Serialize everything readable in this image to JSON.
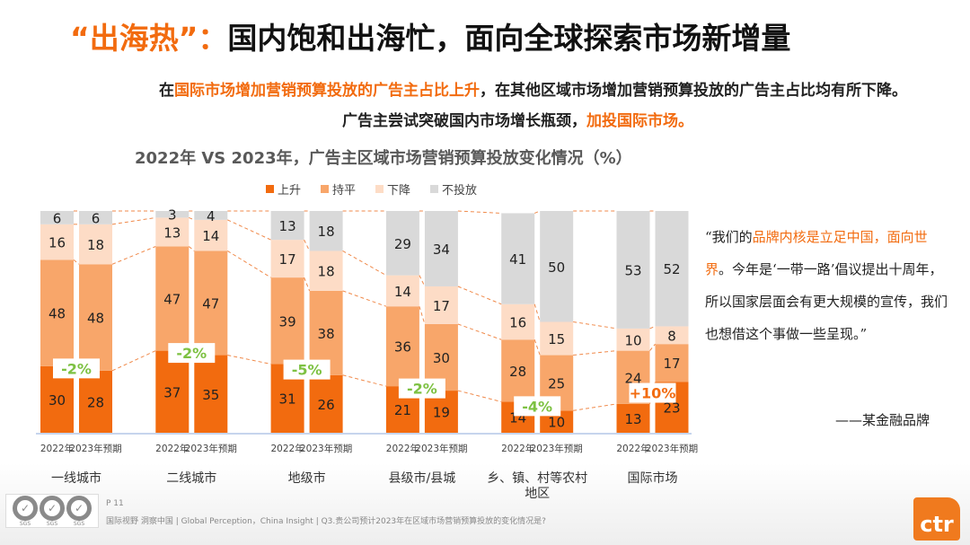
{
  "title": {
    "highlight": "“出海热”：",
    "rest": "国内饱和出海忙，面向全球探索市场新增量"
  },
  "subtitle": {
    "line1_prefix": "在",
    "line1_highlight": "国际市场增加营销预算投放的广告主占比上升",
    "line1_rest": "，在其他区域市场增加营销预算投放的广告主占比均有所下降。",
    "line2_prefix": "广告主尝试突破国内市场增长瓶颈，",
    "line2_highlight": "加投国际市场。"
  },
  "colors": {
    "up": "#F26B0F",
    "flat": "#F8A66A",
    "down": "#FDDCC6",
    "none": "#D9D9D9",
    "delta_down": "#7DC142",
    "delta_up": "#F26B0F"
  },
  "chart_data": {
    "type": "bar",
    "stacked": true,
    "title": "2022年 VS 2023年，广告主区域市场营销预算投放变化情况（%）",
    "legend": [
      "上升",
      "持平",
      "下降",
      "不投放"
    ],
    "legend_position": "top",
    "ylim": [
      0,
      100
    ],
    "groups": [
      {
        "label": "一线城市",
        "delta": "-2%",
        "bars": [
          {
            "x": "2022年",
            "values": [
              30,
              48,
              16,
              6
            ]
          },
          {
            "x": "2023年预期",
            "values": [
              28,
              48,
              18,
              6
            ]
          }
        ]
      },
      {
        "label": "二线城市",
        "delta": "-2%",
        "bars": [
          {
            "x": "2022年",
            "values": [
              37,
              47,
              13,
              3
            ]
          },
          {
            "x": "2023年预期",
            "values": [
              35,
              47,
              14,
              4
            ]
          }
        ]
      },
      {
        "label": "地级市",
        "delta": "-5%",
        "bars": [
          {
            "x": "2022年",
            "values": [
              31,
              39,
              17,
              13
            ]
          },
          {
            "x": "2023年预期",
            "values": [
              26,
              38,
              18,
              18
            ]
          }
        ]
      },
      {
        "label": "县级市/县城",
        "delta": "-2%",
        "bars": [
          {
            "x": "2022年",
            "values": [
              21,
              36,
              14,
              29
            ]
          },
          {
            "x": "2023年预期",
            "values": [
              19,
              30,
              17,
              34
            ]
          }
        ]
      },
      {
        "label": "乡、镇、村等农村地区",
        "delta": "-4%",
        "bars": [
          {
            "x": "2022年",
            "values": [
              14,
              28,
              16,
              41
            ]
          },
          {
            "x": "2023年预期",
            "values": [
              10,
              25,
              15,
              50
            ]
          }
        ]
      },
      {
        "label": "国际市场",
        "delta": "+10%",
        "bars": [
          {
            "x": "2022年",
            "values": [
              13,
              24,
              10,
              53
            ]
          },
          {
            "x": "2023年预期",
            "values": [
              23,
              17,
              8,
              52
            ]
          }
        ]
      }
    ]
  },
  "quote": {
    "open": "“我们的",
    "highlight": "品牌内核是立足中国，面向世界",
    "rest": "。今年是‘一带一路’倡议提出十周年，所以国家层面会有更大规模的宣传，我们也想借这个事做一些呈现。”",
    "attribution": "——某金融品牌"
  },
  "footer": {
    "page": "P 11",
    "text": "国际视野  洞察中国 |  Global Perception，China Insight | Q3.贵公司预计2023年在区域市场营销预算投放的变化情况是?",
    "cert": "SGS",
    "logo": "ctr"
  }
}
